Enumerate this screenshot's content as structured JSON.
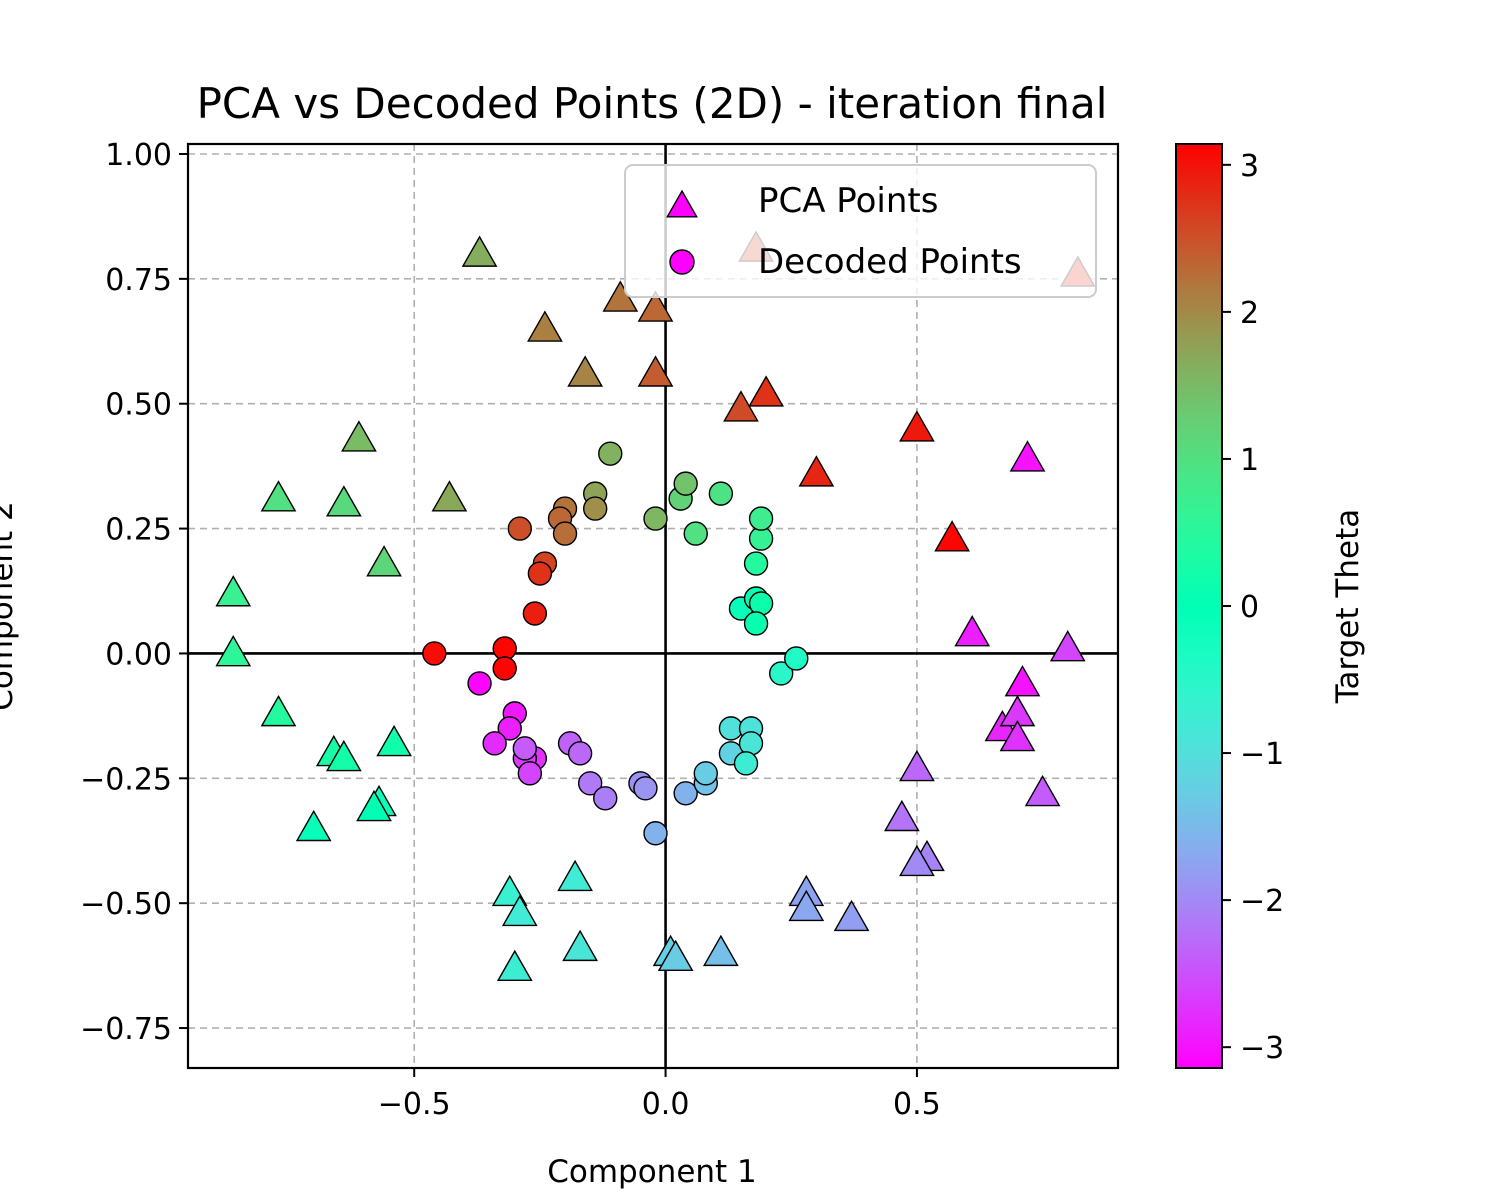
{
  "chart_data": {
    "type": "scatter",
    "title": "PCA vs Decoded Points (2D) - iteration final",
    "xlabel": "Component 1",
    "ylabel": "Component 2",
    "xlim": [
      -0.95,
      0.9
    ],
    "ylim": [
      -0.83,
      1.02
    ],
    "xticks": [
      -0.5,
      0.0,
      0.5
    ],
    "xtick_labels": [
      "−0.5",
      "0.0",
      "0.5"
    ],
    "yticks": [
      -0.75,
      -0.5,
      -0.25,
      0.0,
      0.25,
      0.5,
      0.75,
      1.0
    ],
    "ytick_labels": [
      "−0.75",
      "−0.50",
      "−0.25",
      "0.00",
      "0.25",
      "0.50",
      "0.75",
      "1.00"
    ],
    "grid": true,
    "zero_lines": true,
    "legend": {
      "position": "upper-right"
    },
    "colorbar": {
      "label": "Target Theta",
      "colormap": "rainbow",
      "range": [
        -3.14159,
        3.14159
      ],
      "ticks": [
        -3,
        -2,
        -1,
        0,
        1,
        2,
        3
      ],
      "tick_labels": [
        "−3",
        "−2",
        "−1",
        "0",
        "1",
        "2",
        "3"
      ]
    },
    "series": [
      {
        "name": "PCA Points",
        "marker": "triangle",
        "points": [
          {
            "x": -0.37,
            "y": 0.8,
            "theta": 1.65
          },
          {
            "x": -0.24,
            "y": 0.65,
            "theta": 2.1
          },
          {
            "x": -0.09,
            "y": 0.71,
            "theta": 2.2
          },
          {
            "x": -0.02,
            "y": 0.69,
            "theta": 2.3
          },
          {
            "x": -0.16,
            "y": 0.56,
            "theta": 2.05
          },
          {
            "x": -0.02,
            "y": 0.56,
            "theta": 2.4
          },
          {
            "x": 0.18,
            "y": 0.81,
            "theta": 2.6
          },
          {
            "x": 0.15,
            "y": 0.49,
            "theta": 2.55
          },
          {
            "x": 0.2,
            "y": 0.52,
            "theta": 2.75
          },
          {
            "x": 0.3,
            "y": 0.36,
            "theta": 2.85
          },
          {
            "x": 0.5,
            "y": 0.45,
            "theta": 2.95
          },
          {
            "x": 0.57,
            "y": 0.23,
            "theta": 3.1
          },
          {
            "x": 0.82,
            "y": 0.76,
            "theta": 2.8
          },
          {
            "x": 0.72,
            "y": 0.39,
            "theta": -3.0
          },
          {
            "x": 0.61,
            "y": 0.04,
            "theta": -2.9
          },
          {
            "x": 0.8,
            "y": 0.01,
            "theta": -2.6
          },
          {
            "x": 0.71,
            "y": -0.06,
            "theta": -3.0
          },
          {
            "x": 0.67,
            "y": -0.15,
            "theta": -2.85
          },
          {
            "x": 0.7,
            "y": -0.12,
            "theta": -2.7
          },
          {
            "x": 0.7,
            "y": -0.17,
            "theta": -2.75
          },
          {
            "x": 0.75,
            "y": -0.28,
            "theta": -2.4
          },
          {
            "x": 0.5,
            "y": -0.23,
            "theta": -2.3
          },
          {
            "x": 0.47,
            "y": -0.33,
            "theta": -2.2
          },
          {
            "x": 0.52,
            "y": -0.41,
            "theta": -2.05
          },
          {
            "x": 0.5,
            "y": -0.42,
            "theta": -2.0
          },
          {
            "x": 0.28,
            "y": -0.48,
            "theta": -1.75
          },
          {
            "x": 0.28,
            "y": -0.51,
            "theta": -1.7
          },
          {
            "x": 0.37,
            "y": -0.53,
            "theta": -1.8
          },
          {
            "x": 0.11,
            "y": -0.6,
            "theta": -1.45
          },
          {
            "x": 0.01,
            "y": -0.6,
            "theta": -1.25
          },
          {
            "x": 0.02,
            "y": -0.61,
            "theta": -1.3
          },
          {
            "x": -0.17,
            "y": -0.59,
            "theta": -0.9
          },
          {
            "x": -0.18,
            "y": -0.45,
            "theta": -0.8
          },
          {
            "x": -0.31,
            "y": -0.48,
            "theta": -0.7
          },
          {
            "x": -0.29,
            "y": -0.52,
            "theta": -0.8
          },
          {
            "x": -0.3,
            "y": -0.63,
            "theta": -0.75
          },
          {
            "x": -0.7,
            "y": -0.35,
            "theta": -0.1
          },
          {
            "x": -0.57,
            "y": -0.3,
            "theta": -0.15
          },
          {
            "x": -0.58,
            "y": -0.31,
            "theta": 0.0
          },
          {
            "x": -0.66,
            "y": -0.2,
            "theta": 0.3
          },
          {
            "x": -0.64,
            "y": -0.21,
            "theta": 0.25
          },
          {
            "x": -0.54,
            "y": -0.18,
            "theta": 0.2
          },
          {
            "x": -0.77,
            "y": -0.12,
            "theta": 0.45
          },
          {
            "x": -0.86,
            "y": 0.0,
            "theta": 0.55
          },
          {
            "x": -0.86,
            "y": 0.12,
            "theta": 0.7
          },
          {
            "x": -0.77,
            "y": 0.31,
            "theta": 1.0
          },
          {
            "x": -0.64,
            "y": 0.3,
            "theta": 1.1
          },
          {
            "x": -0.56,
            "y": 0.18,
            "theta": 1.15
          },
          {
            "x": -0.61,
            "y": 0.43,
            "theta": 1.5
          },
          {
            "x": -0.43,
            "y": 0.31,
            "theta": 1.7
          }
        ]
      },
      {
        "name": "Decoded Points",
        "marker": "circle",
        "points": [
          {
            "x": -0.46,
            "y": 0.0,
            "theta": 3.05
          },
          {
            "x": -0.32,
            "y": 0.01,
            "theta": 3.1
          },
          {
            "x": -0.32,
            "y": -0.03,
            "theta": 3.1
          },
          {
            "x": -0.37,
            "y": -0.06,
            "theta": -3.1
          },
          {
            "x": -0.3,
            "y": -0.12,
            "theta": -2.95
          },
          {
            "x": -0.31,
            "y": -0.15,
            "theta": -2.9
          },
          {
            "x": -0.34,
            "y": -0.18,
            "theta": -2.8
          },
          {
            "x": -0.26,
            "y": -0.21,
            "theta": -2.75
          },
          {
            "x": -0.28,
            "y": -0.21,
            "theta": -2.7
          },
          {
            "x": -0.28,
            "y": -0.19,
            "theta": -2.4
          },
          {
            "x": -0.27,
            "y": -0.24,
            "theta": -2.6
          },
          {
            "x": -0.19,
            "y": -0.18,
            "theta": -2.35
          },
          {
            "x": -0.17,
            "y": -0.2,
            "theta": -2.3
          },
          {
            "x": -0.15,
            "y": -0.26,
            "theta": -2.15
          },
          {
            "x": -0.12,
            "y": -0.29,
            "theta": -2.1
          },
          {
            "x": -0.05,
            "y": -0.26,
            "theta": -1.95
          },
          {
            "x": -0.04,
            "y": -0.27,
            "theta": -1.9
          },
          {
            "x": -0.02,
            "y": -0.36,
            "theta": -1.6
          },
          {
            "x": 0.04,
            "y": -0.28,
            "theta": -1.6
          },
          {
            "x": 0.08,
            "y": -0.26,
            "theta": -1.4
          },
          {
            "x": 0.08,
            "y": -0.24,
            "theta": -1.3
          },
          {
            "x": 0.13,
            "y": -0.2,
            "theta": -1.2
          },
          {
            "x": 0.13,
            "y": -0.15,
            "theta": -1.0
          },
          {
            "x": 0.17,
            "y": -0.15,
            "theta": -0.95
          },
          {
            "x": 0.17,
            "y": -0.18,
            "theta": -0.9
          },
          {
            "x": 0.16,
            "y": -0.22,
            "theta": -0.75
          },
          {
            "x": 0.23,
            "y": -0.04,
            "theta": -0.5
          },
          {
            "x": 0.26,
            "y": -0.01,
            "theta": -0.4
          },
          {
            "x": 0.15,
            "y": 0.09,
            "theta": -0.1
          },
          {
            "x": 0.18,
            "y": 0.11,
            "theta": 0.05
          },
          {
            "x": 0.19,
            "y": 0.1,
            "theta": 0.15
          },
          {
            "x": 0.18,
            "y": 0.06,
            "theta": 0.1
          },
          {
            "x": 0.18,
            "y": 0.18,
            "theta": 0.45
          },
          {
            "x": 0.19,
            "y": 0.23,
            "theta": 0.65
          },
          {
            "x": 0.19,
            "y": 0.27,
            "theta": 0.75
          },
          {
            "x": 0.06,
            "y": 0.24,
            "theta": 1.0
          },
          {
            "x": 0.11,
            "y": 0.32,
            "theta": 0.95
          },
          {
            "x": 0.03,
            "y": 0.31,
            "theta": 1.2
          },
          {
            "x": 0.04,
            "y": 0.34,
            "theta": 1.4
          },
          {
            "x": -0.02,
            "y": 0.27,
            "theta": 1.55
          },
          {
            "x": -0.11,
            "y": 0.4,
            "theta": 1.6
          },
          {
            "x": -0.14,
            "y": 0.32,
            "theta": 1.75
          },
          {
            "x": -0.14,
            "y": 0.29,
            "theta": 1.95
          },
          {
            "x": -0.2,
            "y": 0.29,
            "theta": 2.2
          },
          {
            "x": -0.21,
            "y": 0.27,
            "theta": 2.3
          },
          {
            "x": -0.2,
            "y": 0.24,
            "theta": 2.25
          },
          {
            "x": -0.29,
            "y": 0.25,
            "theta": 2.5
          },
          {
            "x": -0.24,
            "y": 0.18,
            "theta": 2.6
          },
          {
            "x": -0.25,
            "y": 0.16,
            "theta": 2.75
          },
          {
            "x": -0.26,
            "y": 0.08,
            "theta": 2.9
          }
        ]
      }
    ]
  }
}
